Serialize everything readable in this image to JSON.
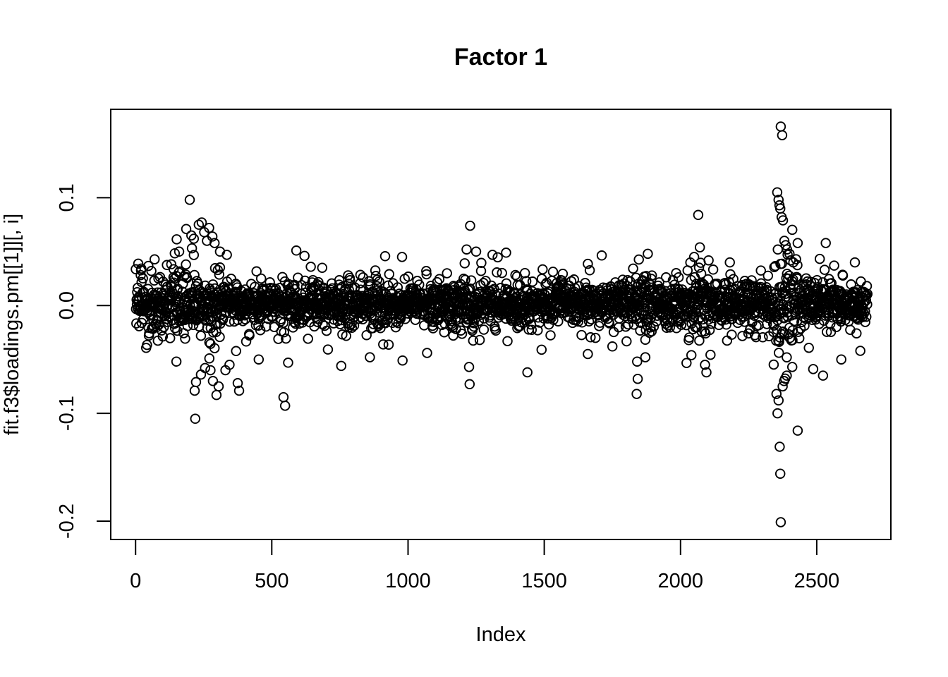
{
  "colors": {
    "foreground": "#000000",
    "background": "#ffffff"
  },
  "chart_data": {
    "type": "scatter",
    "title": "Factor 1",
    "xlabel": "Index",
    "ylabel": "fit.f3$loadings.pm[[1]][, i]",
    "x_ticks": [
      0,
      500,
      1000,
      1500,
      2000,
      2500
    ],
    "x_tick_labels": [
      "0",
      "500",
      "1000",
      "1500",
      "2000",
      "2500"
    ],
    "y_ticks": [
      -0.2,
      -0.1,
      0.0,
      0.1
    ],
    "y_tick_labels": [
      "-0.2",
      "-0.1",
      "0.0",
      "0.1"
    ],
    "xlim": [
      -91,
      2772
    ],
    "ylim": [
      -0.217,
      0.182
    ],
    "grid": false,
    "legend": "none",
    "n_points": 2686,
    "marker": {
      "shape": "open-circle",
      "radius_px": 6.3,
      "stroke_px": 1.9,
      "color": "#000000"
    },
    "band": {
      "mean": 0.0015,
      "core_sd": 0.0095,
      "mid_sd": 0.016,
      "tail_sd": 0.024,
      "core_frac": 0.78,
      "mid_frac": 0.18,
      "cap": 0.046
    },
    "spread_regions": [
      {
        "from": 1,
        "to": 330,
        "mult": 1.45
      },
      {
        "from": 1180,
        "to": 1270,
        "mult": 1.3
      },
      {
        "from": 1820,
        "to": 1895,
        "mult": 1.3
      },
      {
        "from": 2020,
        "to": 2110,
        "mult": 1.5
      },
      {
        "from": 2340,
        "to": 2440,
        "mult": 2.2
      }
    ],
    "seed": 7,
    "outliers": [
      [
        160,
        0.05
      ],
      [
        186,
        0.071
      ],
      [
        199,
        0.098
      ],
      [
        205,
        0.065
      ],
      [
        214,
        0.062
      ],
      [
        232,
        0.075
      ],
      [
        243,
        0.077
      ],
      [
        252,
        0.068
      ],
      [
        262,
        0.06
      ],
      [
        270,
        0.072
      ],
      [
        282,
        0.064
      ],
      [
        290,
        0.058
      ],
      [
        310,
        0.05
      ],
      [
        335,
        0.047
      ],
      [
        590,
        0.051
      ],
      [
        620,
        0.046
      ],
      [
        978,
        0.045
      ],
      [
        150,
        -0.052
      ],
      [
        217,
        -0.079
      ],
      [
        219,
        -0.105
      ],
      [
        222,
        -0.071
      ],
      [
        240,
        -0.064
      ],
      [
        255,
        -0.058
      ],
      [
        271,
        -0.049
      ],
      [
        275,
        -0.06
      ],
      [
        284,
        -0.07
      ],
      [
        297,
        -0.083
      ],
      [
        305,
        -0.075
      ],
      [
        330,
        -0.06
      ],
      [
        345,
        -0.055
      ],
      [
        375,
        -0.072
      ],
      [
        380,
        -0.079
      ],
      [
        452,
        -0.05
      ],
      [
        543,
        -0.085
      ],
      [
        549,
        -0.093
      ],
      [
        560,
        -0.053
      ],
      [
        755,
        -0.056
      ],
      [
        860,
        -0.048
      ],
      [
        980,
        -0.051
      ],
      [
        1070,
        -0.044
      ],
      [
        1215,
        0.052
      ],
      [
        1228,
        0.074
      ],
      [
        1250,
        0.05
      ],
      [
        1224,
        -0.057
      ],
      [
        1226,
        -0.073
      ],
      [
        1310,
        0.047
      ],
      [
        1360,
        0.049
      ],
      [
        1438,
        -0.062
      ],
      [
        1490,
        -0.041
      ],
      [
        1660,
        -0.045
      ],
      [
        1750,
        -0.038
      ],
      [
        1839,
        -0.082
      ],
      [
        1841,
        -0.052
      ],
      [
        1843,
        -0.068
      ],
      [
        1871,
        -0.048
      ],
      [
        1880,
        0.048
      ],
      [
        2040,
        -0.046
      ],
      [
        2050,
        0.045
      ],
      [
        2065,
        0.084
      ],
      [
        2071,
        0.054
      ],
      [
        2090,
        -0.055
      ],
      [
        2095,
        -0.062
      ],
      [
        2181,
        0.04
      ],
      [
        2352,
        -0.082
      ],
      [
        2355,
        0.105
      ],
      [
        2356,
        -0.1
      ],
      [
        2360,
        0.098
      ],
      [
        2360,
        -0.088
      ],
      [
        2363,
        0.093
      ],
      [
        2364,
        -0.131
      ],
      [
        2366,
        0.09
      ],
      [
        2366,
        -0.156
      ],
      [
        2368,
        0.166
      ],
      [
        2368,
        -0.201
      ],
      [
        2371,
        0.082
      ],
      [
        2373,
        0.158
      ],
      [
        2375,
        -0.075
      ],
      [
        2376,
        0.079
      ],
      [
        2380,
        -0.07
      ],
      [
        2381,
        0.06
      ],
      [
        2386,
        0.056
      ],
      [
        2390,
        -0.065
      ],
      [
        2391,
        0.052
      ],
      [
        2400,
        0.048
      ],
      [
        2410,
        -0.057
      ],
      [
        2414,
        0.04
      ],
      [
        2430,
        0.058
      ],
      [
        2430,
        -0.116
      ],
      [
        2487,
        -0.059
      ],
      [
        2523,
        -0.065
      ],
      [
        2533,
        0.058
      ],
      [
        2590,
        -0.05
      ],
      [
        2640,
        0.04
      ],
      [
        2660,
        -0.042
      ]
    ]
  }
}
